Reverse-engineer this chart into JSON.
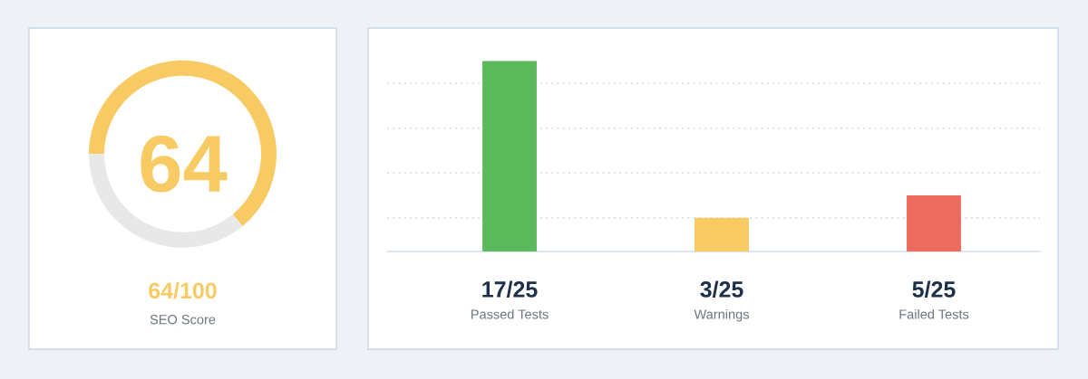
{
  "chart_data": [
    {
      "type": "donut",
      "categories": [
        null,
        null
      ],
      "values": [
        64,
        36
      ],
      "colors": [
        "#f8ca64",
        "#e8e8e8"
      ],
      "value_labels": [
        "64",
        null
      ],
      "annotations": [
        "64/100",
        "SEO Score"
      ]
    },
    {
      "type": "bar",
      "categories": [
        "Passed Tests",
        "Warnings",
        "Failed Tests"
      ],
      "values": [
        17,
        3,
        5
      ],
      "colors": [
        "#5cb95b",
        "#f8ca64",
        "#ed6b5f"
      ],
      "value_labels": [
        "17/25",
        "3/25",
        "5/25"
      ],
      "yticks": [
        {
          "value": 3,
          "label": null
        },
        {
          "value": 7,
          "label": null
        },
        {
          "value": 11,
          "label": null
        },
        {
          "value": 15,
          "label": null
        }
      ],
      "grid": "y",
      "tick_labels": "x"
    }
  ]
}
